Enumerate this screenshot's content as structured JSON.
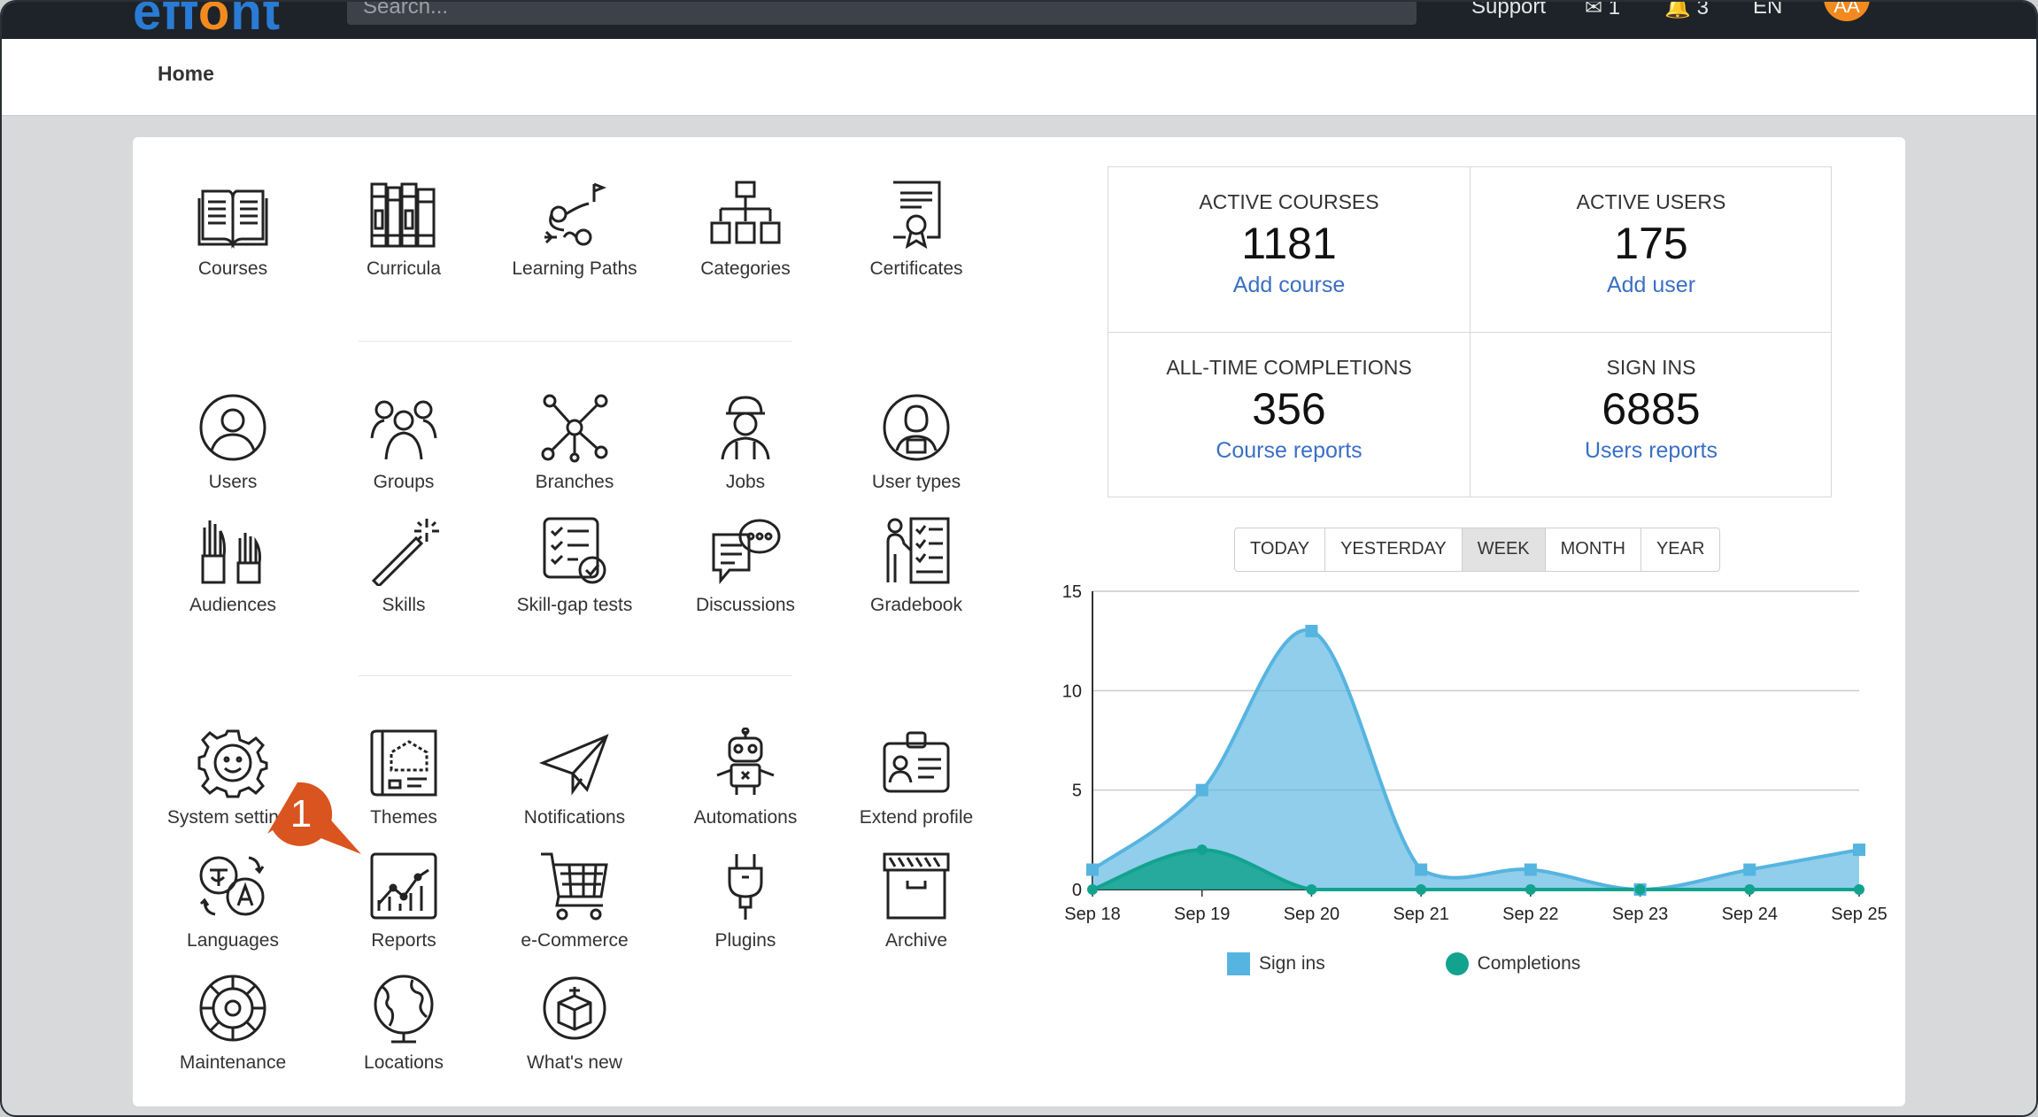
{
  "brand": {
    "name_start": "eff",
    "name_o": "o",
    "name_end": "nt",
    "accent": "#f28a1f",
    "primary": "#2a7bd4"
  },
  "header": {
    "search_placeholder": "Search...",
    "support_label": "Support",
    "messages_count": "1",
    "notifications_count": "3",
    "language": "EN",
    "avatar_initials": "AA"
  },
  "breadcrumb": {
    "home": "Home"
  },
  "tiles": {
    "courses": "Courses",
    "curricula": "Curricula",
    "learning_paths": "Learning Paths",
    "categories": "Categories",
    "certificates": "Certificates",
    "users": "Users",
    "groups": "Groups",
    "branches": "Branches",
    "jobs": "Jobs",
    "user_types": "User types",
    "audiences": "Audiences",
    "skills": "Skills",
    "skill_gap_tests": "Skill-gap tests",
    "discussions": "Discussions",
    "gradebook": "Gradebook",
    "system_settings": "System settings",
    "themes": "Themes",
    "notifications": "Notifications",
    "automations": "Automations",
    "extend_profile": "Extend profile",
    "languages": "Languages",
    "reports": "Reports",
    "ecommerce": "e-Commerce",
    "plugins": "Plugins",
    "archive": "Archive",
    "maintenance": "Maintenance",
    "locations": "Locations",
    "whats_new": "What's new"
  },
  "callout": {
    "number": "1",
    "color": "#d9541e"
  },
  "stats": {
    "active_courses": {
      "title": "ACTIVE COURSES",
      "value": "1181",
      "action": "Add course"
    },
    "active_users": {
      "title": "ACTIVE USERS",
      "value": "175",
      "action": "Add user"
    },
    "completions": {
      "title": "ALL-TIME COMPLETIONS",
      "value": "356",
      "action": "Course reports"
    },
    "sign_ins": {
      "title": "SIGN INS",
      "value": "6885",
      "action": "Users reports"
    }
  },
  "range": {
    "today": "TODAY",
    "yesterday": "YESTERDAY",
    "week": "WEEK",
    "month": "MONTH",
    "year": "YEAR",
    "active": "WEEK"
  },
  "chart_data": {
    "type": "area",
    "categories": [
      "Sep 18",
      "Sep 19",
      "Sep 20",
      "Sep 21",
      "Sep 22",
      "Sep 23",
      "Sep 24",
      "Sep 25"
    ],
    "series": [
      {
        "name": "Sign ins",
        "values": [
          1,
          5,
          13,
          1,
          1,
          0,
          1,
          2
        ],
        "color": "#56b4e0"
      },
      {
        "name": "Completions",
        "values": [
          0,
          2,
          0,
          0,
          0,
          0,
          0,
          0
        ],
        "color": "#12a38f"
      }
    ],
    "ylim": [
      0,
      15
    ],
    "yticks": [
      0,
      5,
      10,
      15
    ],
    "legend": "bottom"
  }
}
